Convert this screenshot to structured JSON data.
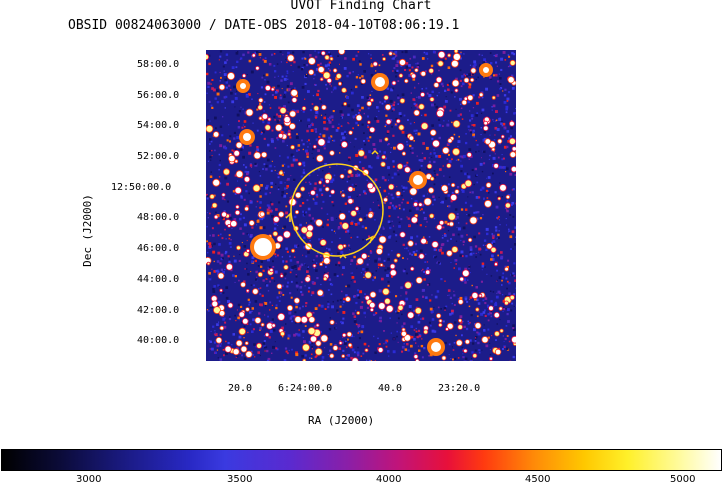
{
  "title": "UVOT Finding Chart",
  "subtitle": "OBSID 00824063000 / DATE-OBS 2018-04-10T08:06:19.1",
  "dec_axis": {
    "label": "Dec (J2000)",
    "ticks": [
      "58:00.0",
      "56:00.0",
      "54:00.0",
      "52:00.0",
      "12:50:00.0",
      "48:00.0",
      "46:00.0",
      "44:00.0",
      "42:00.0",
      "40:00.0"
    ]
  },
  "ra_axis": {
    "label": "RA (J2000)",
    "ticks": [
      "20.0",
      "6:24:00.0",
      "40.0",
      "23:20.0"
    ]
  },
  "colorbar": {
    "ticks": [
      "3000",
      "3500",
      "4000",
      "4500",
      "5000"
    ]
  },
  "colors": {
    "background": "#1c1c8a",
    "circle": "#ffd21a"
  },
  "source_circle": {
    "shape": "circle"
  }
}
